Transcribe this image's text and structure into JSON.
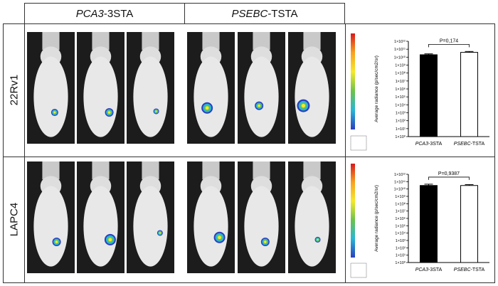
{
  "columns": {
    "left": {
      "gene": "PCA3",
      "suffix": "-3STA"
    },
    "right": {
      "gene": "PSEBC",
      "suffix": "-TSTA"
    }
  },
  "rows": [
    {
      "label": "22Rv1"
    },
    {
      "label": "LAPC4"
    }
  ],
  "colorscale": {
    "colors": [
      "#d7191c",
      "#f8a21f",
      "#f5e92a",
      "#6cc24a",
      "#27b6d6",
      "#2a3fbf"
    ]
  },
  "chart_data": [
    {
      "type": "bar",
      "categories": [
        "PCA3-3STA",
        "PSEBC-TSTA"
      ],
      "categories_italic_part": [
        "PCA3",
        "PSEBC"
      ],
      "categories_plain_part": [
        "-3STA",
        "-TSTA"
      ],
      "values": [
        20000000000,
        40000000000
      ],
      "errors": [
        6000000000,
        12000000000
      ],
      "bar_fills": [
        "#000000",
        "#ffffff"
      ],
      "ylabel": "Average radiance (p/sec/cm2/sr)",
      "yscale": "log",
      "ylim": [
        1,
        1000000000000
      ],
      "yticks": [
        "1×10⁰",
        "1×10¹",
        "1×10²",
        "1×10³",
        "1×10⁴",
        "1×10⁵",
        "1×10⁶",
        "1×10⁷",
        "1×10⁸",
        "1×10⁹",
        "1×10¹⁰",
        "1×10¹¹",
        "1×10¹²"
      ],
      "annotation": "P=0,174"
    },
    {
      "type": "bar",
      "categories": [
        "PCA3-3STA",
        "PSEBC-TSTA"
      ],
      "categories_italic_part": [
        "PCA3",
        "PSEBC"
      ],
      "categories_plain_part": [
        "-3STA",
        "-TSTA"
      ],
      "values": [
        30000000000,
        30000000000
      ],
      "errors": [
        15000000000,
        10000000000
      ],
      "bar_fills": [
        "#000000",
        "#ffffff"
      ],
      "ylabel": "Average radiance (p/sec/cm2/sr)",
      "yscale": "log",
      "ylim": [
        1,
        1000000000000
      ],
      "yticks": [
        "1×10⁰",
        "1×10¹",
        "1×10²",
        "1×10³",
        "1×10⁴",
        "1×10⁵",
        "1×10⁶",
        "1×10⁷",
        "1×10⁸",
        "1×10⁹",
        "1×10¹⁰",
        "1×10¹¹",
        "1×10¹²"
      ],
      "annotation": "P=0,9387"
    }
  ]
}
